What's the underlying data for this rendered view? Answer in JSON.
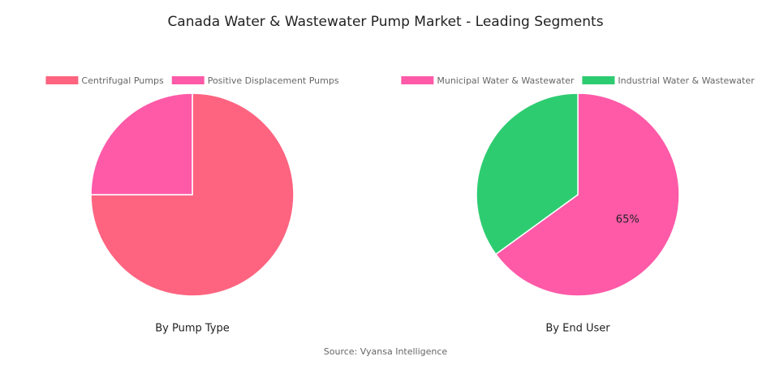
{
  "title": "Canada Water & Wastewater Pump Market - Leading Segments",
  "source": "Source: Vyansa Intelligence",
  "chart_data": [
    {
      "type": "pie",
      "subtitle": "By Pump Type",
      "categories": [
        "Centrifugal Pumps",
        "Positive Displacement Pumps"
      ],
      "values": [
        75,
        25
      ],
      "colors": [
        "#fe6480",
        "#fe5aa8"
      ]
    },
    {
      "type": "pie",
      "subtitle": "By End User",
      "categories": [
        "Municipal Water & Wastewater",
        "Industrial Water & Wastewater"
      ],
      "values": [
        65,
        35
      ],
      "value_labels": [
        "65%",
        null
      ],
      "colors": [
        "#fe5aa8",
        "#2ecc71"
      ]
    }
  ]
}
